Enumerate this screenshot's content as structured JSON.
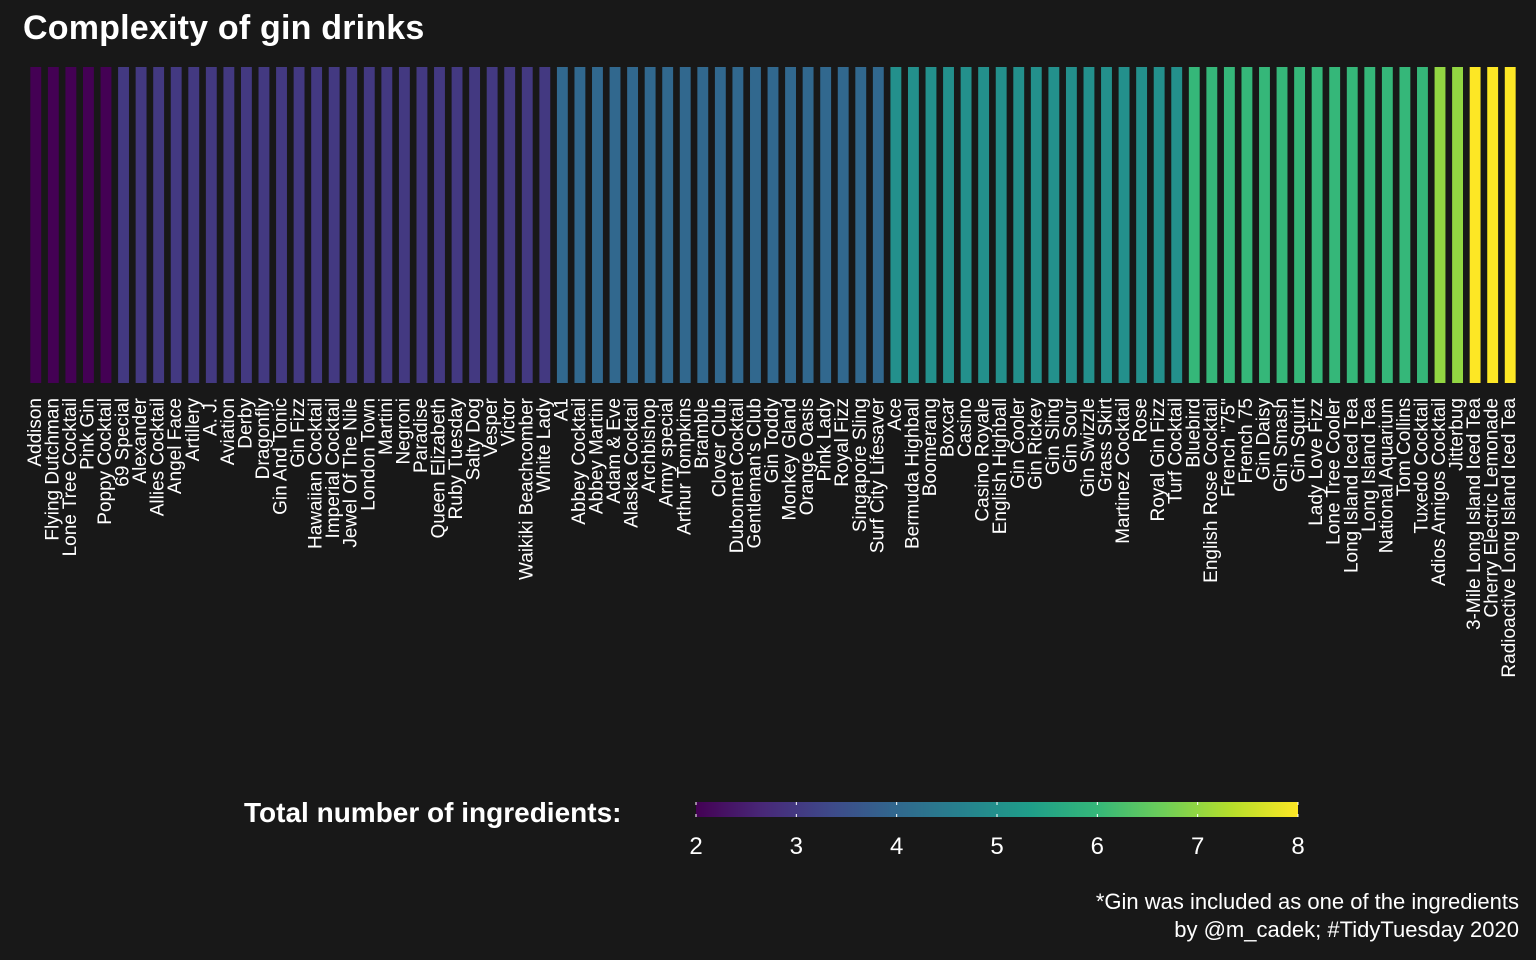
{
  "chart_data": {
    "type": "bar",
    "title": "Complexity of gin drinks",
    "categories": [
      "Addison",
      "Flying Dutchman",
      "Lone Tree Cocktail",
      "Pink Gin",
      "Poppy Cocktail",
      "69 Special",
      "Alexander",
      "Allies Cocktail",
      "Angel Face",
      "Artillery",
      "A. J.",
      "Aviation",
      "Derby",
      "Dragonfly",
      "Gin And Tonic",
      "Gin Fizz",
      "Hawaiian Cocktail",
      "Imperial Cocktail",
      "Jewel Of The Nile",
      "London Town",
      "Martini",
      "Negroni",
      "Paradise",
      "Queen Elizabeth",
      "Ruby Tuesday",
      "Salty Dog",
      "Vesper",
      "Victor",
      "Waikiki Beachcomber",
      "White Lady",
      "A1",
      "Abbey Cocktail",
      "Abbey Martini",
      "Adam & Eve",
      "Alaska Cocktail",
      "Archbishop",
      "Army special",
      "Arthur Tompkins",
      "Bramble",
      "Clover Club",
      "Dubonnet Cocktail",
      "Gentleman's Club",
      "Gin Toddy",
      "Monkey Gland",
      "Orange Oasis",
      "Pink Lady",
      "Royal Fizz",
      "Singapore Sling",
      "Surf City Lifesaver",
      "Ace",
      "Bermuda Highball",
      "Boomerang",
      "Boxcar",
      "Casino",
      "Casino Royale",
      "English Highball",
      "Gin Cooler",
      "Gin Rickey",
      "Gin Sling",
      "Gin Sour",
      "Gin Swizzle",
      "Grass Skirt",
      "Martinez Cocktail",
      "Rose",
      "Royal Gin Fizz",
      "Turf Cocktail",
      "Bluebird",
      "English Rose Cocktail",
      "French \"75\"",
      "French 75",
      "Gin Daisy",
      "Gin Smash",
      "Gin Squirt",
      "Lady Love Fizz",
      "Lone Tree Cooler",
      "Long Island Iced Tea",
      "Long Island Tea",
      "National Aquarium",
      "Tom Collins",
      "Tuxedo Cocktail",
      "Adios Amigos Cocktail",
      "Jitterbug",
      "3-Mile Long Island Iced Tea",
      "Cherry Electric Lemonade",
      "Radioactive Long Island Iced Tea"
    ],
    "values": [
      2,
      2,
      2,
      2,
      2,
      3,
      3,
      3,
      3,
      3,
      3,
      3,
      3,
      3,
      3,
      3,
      3,
      3,
      3,
      3,
      3,
      3,
      3,
      3,
      3,
      3,
      3,
      3,
      3,
      3,
      4,
      4,
      4,
      4,
      4,
      4,
      4,
      4,
      4,
      4,
      4,
      4,
      4,
      4,
      4,
      4,
      4,
      4,
      4,
      5,
      5,
      5,
      5,
      5,
      5,
      5,
      5,
      5,
      5,
      5,
      5,
      5,
      5,
      5,
      5,
      5,
      6,
      6,
      6,
      6,
      6,
      6,
      6,
      6,
      6,
      6,
      6,
      6,
      6,
      6,
      7,
      7,
      8,
      8,
      8
    ],
    "colorbar": {
      "title": "Total number of ingredients:",
      "min": 2,
      "max": 8,
      "ticks": [
        2,
        3,
        4,
        5,
        6,
        7,
        8
      ],
      "palette": "viridis"
    },
    "colors": {
      "background": "#181818",
      "text": "#ffffff"
    },
    "ylim": [
      0,
      8
    ],
    "grid": false,
    "legend_position": "bottom"
  },
  "caption": {
    "line1": "*Gin was included as one of the ingredients",
    "line2": "by @m_cadek; #TidyTuesday 2020"
  }
}
